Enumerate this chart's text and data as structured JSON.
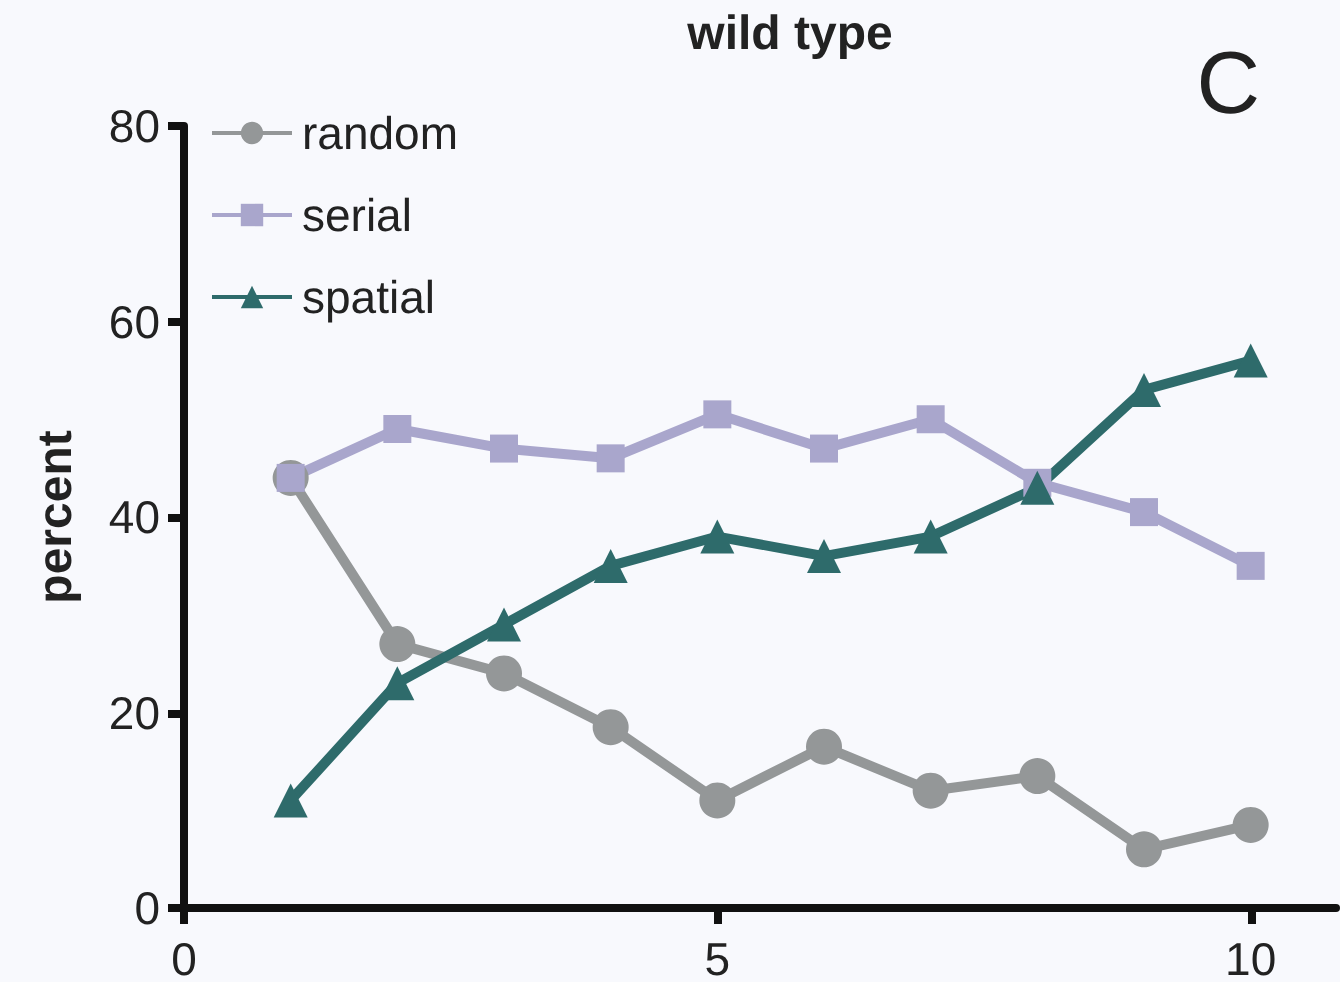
{
  "chart_data": {
    "type": "line",
    "title": "wild type",
    "ylabel": "percent",
    "annotations": [
      "C"
    ],
    "x": [
      1,
      2,
      3,
      4,
      5,
      6,
      7,
      8,
      9,
      10
    ],
    "series": [
      {
        "name": "random",
        "color": "#949798",
        "marker": "circle",
        "values": [
          44,
          27,
          24,
          18.5,
          11,
          16.5,
          12,
          13.5,
          6,
          8.5
        ]
      },
      {
        "name": "serial",
        "color": "#a9a6cc",
        "marker": "square",
        "values": [
          44,
          49,
          47,
          46,
          50.5,
          47,
          50,
          43.5,
          40.5,
          35
        ]
      },
      {
        "name": "spatial",
        "color": "#2e6b6b",
        "marker": "triangle",
        "values": [
          11,
          23,
          29,
          35,
          38,
          36,
          38,
          43,
          53,
          56
        ]
      }
    ],
    "xlim": [
      0,
      10.8
    ],
    "xticks": [
      0,
      5,
      10
    ],
    "ylim": [
      0,
      80
    ],
    "yticks": [
      0,
      20,
      40,
      60,
      80
    ],
    "grid": false,
    "legend": "top left",
    "line_style": "solid"
  }
}
